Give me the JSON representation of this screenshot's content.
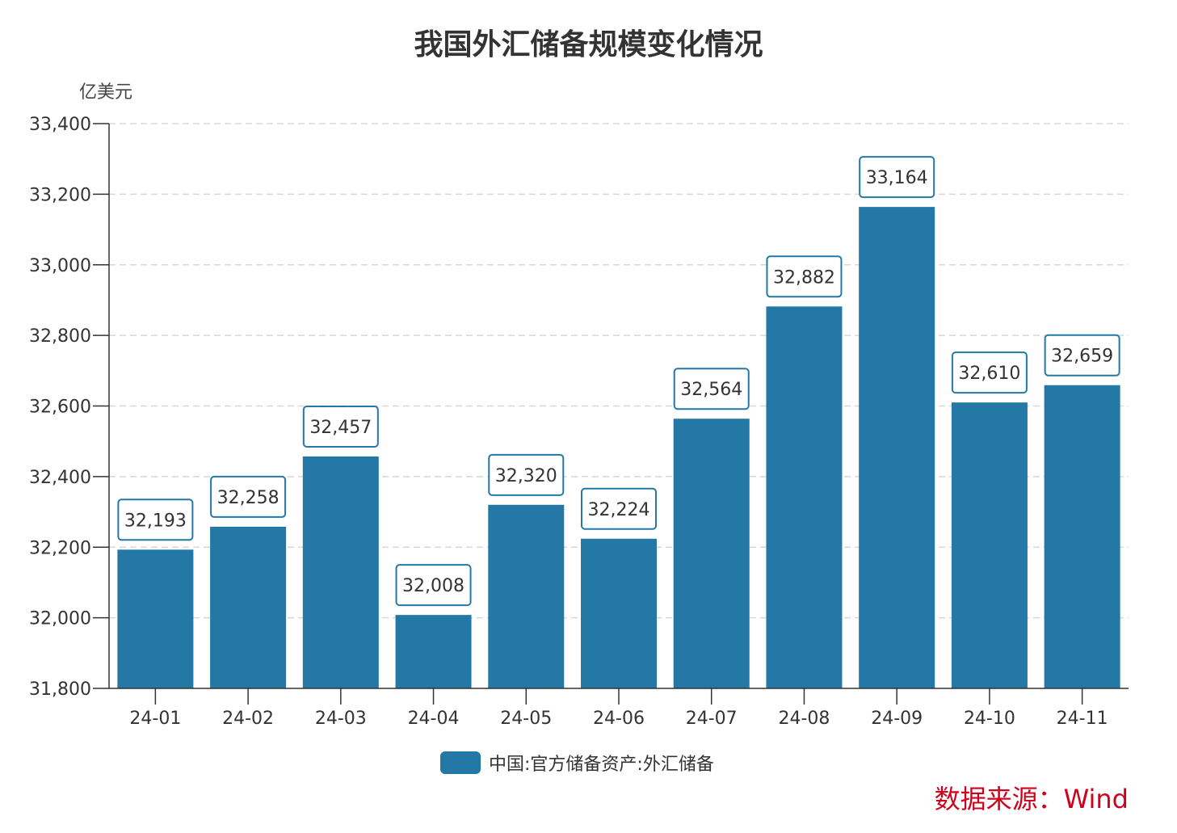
{
  "chart_data": {
    "type": "bar",
    "title": "我国外汇储备规模变化情况",
    "ylabel": "亿美元",
    "xlabel": "",
    "categories": [
      "24-01",
      "24-02",
      "24-03",
      "24-04",
      "24-05",
      "24-06",
      "24-07",
      "24-08",
      "24-09",
      "24-10",
      "24-11"
    ],
    "series": [
      {
        "name": "中国:官方储备资产:外汇储备",
        "values": [
          32193,
          32258,
          32457,
          32008,
          32320,
          32224,
          32564,
          32882,
          33164,
          32610,
          32659
        ]
      }
    ],
    "ylim": [
      31800,
      33400
    ],
    "yticks": [
      31800,
      32000,
      32200,
      32400,
      32600,
      32800,
      33000,
      33200,
      33400
    ],
    "grid": true,
    "legend": "bottom-center",
    "bar_color": "#2378a5",
    "source": "数据来源：Wind"
  }
}
